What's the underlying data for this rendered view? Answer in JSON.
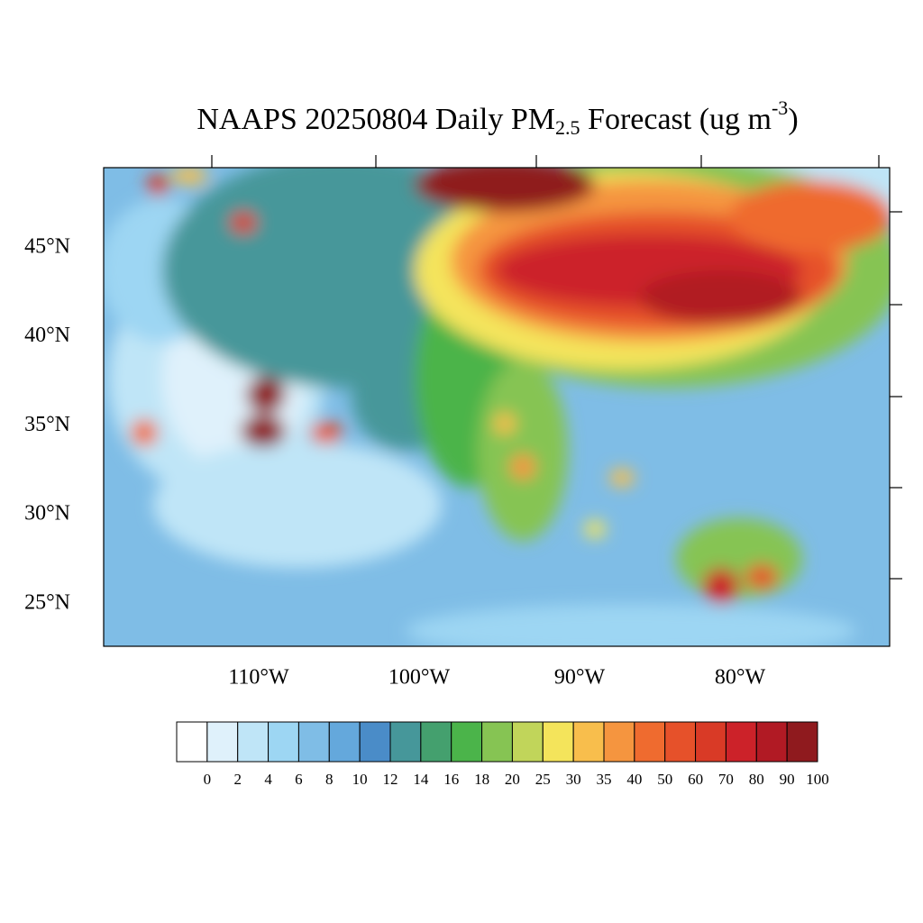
{
  "map": {
    "title": {
      "main": "NAAPS 20250804 Daily PM",
      "sub": "2.5",
      "mid": " Forecast (ug m",
      "sup": "-3",
      "end": ")"
    },
    "lat_labels": [
      "45°N",
      "40°N",
      "35°N",
      "30°N",
      "25°N"
    ],
    "lon_labels": [
      "110°W",
      "100°W",
      "90°W",
      "80°W"
    ],
    "colorbar": {
      "levels": [
        0,
        2,
        4,
        6,
        8,
        10,
        12,
        14,
        16,
        18,
        20,
        25,
        30,
        35,
        40,
        50,
        60,
        70,
        80,
        90,
        100
      ],
      "colors": [
        "#ffffff",
        "#dff1fb",
        "#bfe5f7",
        "#9dd6f3",
        "#7fbde6",
        "#64a8dc",
        "#4a8cc8",
        "#46979a",
        "#44a06e",
        "#4bb44a",
        "#86c453",
        "#c1d55a",
        "#f4e45b",
        "#f8be4c",
        "#f5953f",
        "#ef6b2f",
        "#e6512a",
        "#d93a26",
        "#cc2229",
        "#b11a24",
        "#8f1a1e"
      ]
    }
  }
}
